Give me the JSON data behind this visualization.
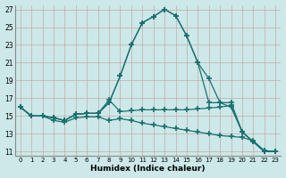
{
  "xlabel": "Humidex (Indice chaleur)",
  "background_color": "#cce8e8",
  "line_color": "#1a7070",
  "grid_color": "#b0d0d0",
  "xlim": [
    -0.5,
    23.5
  ],
  "ylim": [
    10.5,
    27.5
  ],
  "xticks": [
    0,
    1,
    2,
    3,
    4,
    5,
    6,
    7,
    8,
    9,
    10,
    11,
    12,
    13,
    14,
    15,
    16,
    17,
    18,
    19,
    20,
    21,
    22,
    23
  ],
  "yticks": [
    11,
    13,
    15,
    17,
    19,
    21,
    23,
    25,
    27
  ],
  "series": [
    [
      16.0,
      15.0,
      15.0,
      14.8,
      14.5,
      15.2,
      15.3,
      15.3,
      16.5,
      19.5,
      23.0,
      25.5,
      26.2,
      27.0,
      26.3,
      24.0,
      21.0,
      19.2,
      16.5,
      16.0,
      13.2,
      12.1,
      11.0,
      11.0
    ],
    [
      16.0,
      15.0,
      15.0,
      14.8,
      14.5,
      15.2,
      15.3,
      15.3,
      16.5,
      19.5,
      23.0,
      25.5,
      26.2,
      27.0,
      26.3,
      24.0,
      21.0,
      16.5,
      16.5,
      16.5,
      13.2,
      12.1,
      11.0,
      11.0
    ],
    [
      16.0,
      15.0,
      15.0,
      14.8,
      14.5,
      15.2,
      15.3,
      15.3,
      16.8,
      15.5,
      15.6,
      15.7,
      15.7,
      15.7,
      15.7,
      15.7,
      15.8,
      15.9,
      16.0,
      16.2,
      13.2,
      12.1,
      11.0,
      11.0
    ],
    [
      16.0,
      15.0,
      15.0,
      14.5,
      14.3,
      14.8,
      14.9,
      14.9,
      14.5,
      14.7,
      14.5,
      14.2,
      14.0,
      13.8,
      13.6,
      13.4,
      13.2,
      13.0,
      12.8,
      12.7,
      12.6,
      12.2,
      11.1,
      11.0
    ]
  ]
}
